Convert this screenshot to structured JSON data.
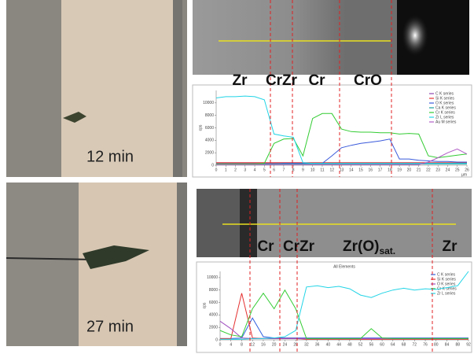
{
  "panels": [
    {
      "time": "12 min",
      "phases": [
        {
          "text": "Zr"
        },
        {
          "text": "CrZr"
        },
        {
          "text": "Cr"
        },
        {
          "text": "CrO"
        }
      ]
    },
    {
      "time": "27 min",
      "phases": [
        {
          "text": "Cr"
        },
        {
          "text": "CrZr"
        },
        {
          "text": "Zr(O)",
          "subscript": "sat."
        },
        {
          "text": "Zr"
        }
      ]
    }
  ],
  "chart_data": [
    {
      "type": "line",
      "x_label": "µm",
      "y_label": "cps",
      "x": [
        0,
        1,
        2,
        3,
        4,
        5,
        6,
        7,
        8,
        9,
        10,
        11,
        12,
        13,
        14,
        15,
        16,
        17,
        18,
        19,
        20,
        21,
        22,
        23,
        24,
        25,
        26
      ],
      "xlim": [
        0,
        26
      ],
      "xticks": [
        0,
        1,
        2,
        3,
        4,
        5,
        6,
        7,
        8,
        9,
        10,
        11,
        12,
        13,
        14,
        15,
        16,
        17,
        18,
        19,
        20,
        21,
        22,
        23,
        24,
        25,
        26
      ],
      "ylim": [
        0,
        12000
      ],
      "yticks": [
        0,
        2000,
        4000,
        6000,
        8000,
        10000
      ],
      "series": [
        {
          "name": "C K series",
          "color": "#8e44ad",
          "values": [
            300,
            300,
            300,
            300,
            300,
            300,
            300,
            300,
            300,
            300,
            300,
            300,
            300,
            300,
            300,
            300,
            300,
            300,
            300,
            300,
            300,
            300,
            300,
            300,
            300,
            300,
            300
          ]
        },
        {
          "name": "Si K series",
          "color": "#e53030",
          "values": [
            400,
            400,
            400,
            400,
            400,
            400,
            400,
            400,
            400,
            400,
            400,
            400,
            400,
            400,
            400,
            400,
            400,
            400,
            400,
            400,
            400,
            400,
            400,
            400,
            400,
            400,
            400
          ]
        },
        {
          "name": "O K series",
          "color": "#3b5bdb",
          "values": [
            200,
            200,
            200,
            200,
            200,
            200,
            200,
            300,
            300,
            300,
            300,
            300,
            1500,
            2800,
            3200,
            3500,
            3700,
            3900,
            4200,
            1000,
            1000,
            800,
            700,
            600,
            600,
            500,
            500
          ]
        },
        {
          "name": "Ca K series",
          "color": "#1b9e9e",
          "values": [
            200,
            200,
            200,
            200,
            200,
            200,
            200,
            200,
            200,
            200,
            200,
            200,
            200,
            200,
            200,
            200,
            200,
            200,
            200,
            200,
            200,
            200,
            200,
            200,
            200,
            200,
            200
          ]
        },
        {
          "name": "Cr K series",
          "color": "#33cc33",
          "values": [
            200,
            200,
            200,
            200,
            200,
            300,
            3500,
            4200,
            4300,
            1500,
            7500,
            8300,
            8300,
            5800,
            5400,
            5300,
            5300,
            5200,
            5200,
            5000,
            5100,
            5000,
            1500,
            1200,
            1400,
            1600,
            1800
          ]
        },
        {
          "name": "Zr L series",
          "color": "#21d4e6",
          "values": [
            10800,
            11000,
            11000,
            11100,
            11000,
            10500,
            5000,
            4700,
            4500,
            400,
            300,
            300,
            300,
            300,
            300,
            300,
            300,
            300,
            300,
            300,
            300,
            300,
            300,
            300,
            300,
            300,
            300
          ]
        },
        {
          "name": "Au M series",
          "color": "#b05cc6",
          "values": [
            100,
            100,
            100,
            100,
            100,
            100,
            100,
            100,
            100,
            100,
            100,
            100,
            100,
            100,
            100,
            100,
            100,
            100,
            100,
            100,
            100,
            100,
            500,
            1200,
            2000,
            2600,
            1800
          ]
        }
      ]
    },
    {
      "type": "line",
      "title": "All Elements",
      "y_label": "cps",
      "x": [
        0,
        4,
        8,
        12,
        16,
        20,
        24,
        28,
        32,
        36,
        40,
        44,
        48,
        52,
        56,
        60,
        64,
        68,
        72,
        76,
        80,
        84,
        88,
        92
      ],
      "xlim": [
        0,
        92
      ],
      "xticks": [
        0,
        4,
        8,
        12,
        16,
        20,
        24,
        28,
        32,
        36,
        40,
        44,
        48,
        52,
        56,
        60,
        64,
        68,
        72,
        76,
        80,
        84,
        88,
        92
      ],
      "ylim": [
        0,
        11000
      ],
      "yticks": [
        0,
        2000,
        4000,
        6000,
        8000,
        10000
      ],
      "series": [
        {
          "name": "C K series",
          "color": "#2f5fe0",
          "values": [
            200,
            200,
            300,
            3500,
            500,
            300,
            300,
            300,
            300,
            300,
            300,
            300,
            300,
            300,
            300,
            300,
            300,
            300,
            300,
            300,
            300,
            300,
            300,
            300
          ]
        },
        {
          "name": "Si K series",
          "color": "#e53030",
          "values": [
            200,
            200,
            7500,
            300,
            200,
            200,
            200,
            200,
            100,
            100,
            100,
            100,
            100,
            100,
            100,
            100,
            100,
            100,
            100,
            100,
            100,
            100,
            100,
            100
          ]
        },
        {
          "name": "O K series",
          "color": "#a050c0",
          "values": [
            3000,
            1800,
            300,
            200,
            200,
            200,
            200,
            200,
            200,
            200,
            200,
            200,
            200,
            200,
            200,
            200,
            200,
            200,
            200,
            200,
            200,
            200,
            200,
            200
          ]
        },
        {
          "name": "Cr K series",
          "color": "#33cc33",
          "values": [
            1500,
            800,
            500,
            5000,
            7500,
            5000,
            8000,
            5000,
            200,
            200,
            200,
            200,
            200,
            200,
            1800,
            300,
            200,
            200,
            200,
            200,
            200,
            200,
            200,
            200
          ]
        },
        {
          "name": "Zr L series",
          "color": "#21d4e6",
          "values": [
            100,
            100,
            100,
            200,
            200,
            300,
            500,
            1500,
            8500,
            8700,
            8400,
            8600,
            8200,
            7200,
            6800,
            7500,
            8000,
            8300,
            8000,
            8200,
            8100,
            8400,
            8700,
            11000
          ]
        }
      ]
    }
  ]
}
